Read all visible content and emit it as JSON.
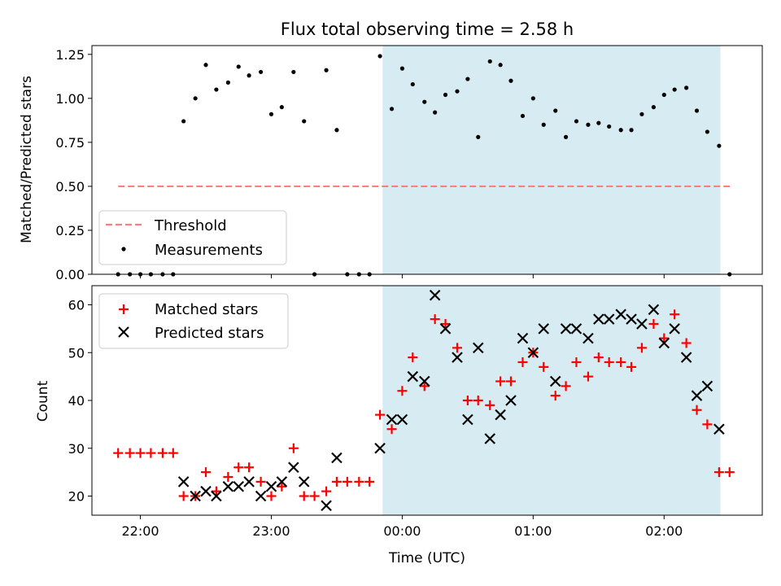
{
  "title": "Flux total observing time = 2.58 h",
  "chart_data": [
    {
      "type": "scatter",
      "panel": "top",
      "ylabel": "Matched/Predicted stars",
      "xlabel": "",
      "xlim_hours": [
        21.63,
        26.75
      ],
      "ylim": [
        0,
        1.3
      ],
      "yticks": [
        0.0,
        0.25,
        0.5,
        0.75,
        1.0,
        1.25
      ],
      "ytick_labels": [
        "0.00",
        "0.25",
        "0.50",
        "0.75",
        "1.00",
        "1.25"
      ],
      "shaded_region_hours": [
        23.85,
        26.43
      ],
      "threshold": {
        "name": "Threshold",
        "y": 0.5,
        "x_hours": [
          21.83,
          26.52
        ],
        "color": "#ff7f7f"
      },
      "series": [
        {
          "name": "Measurements",
          "marker": "dot",
          "color": "#000000",
          "x_hours": [
            21.83,
            21.92,
            22.0,
            22.08,
            22.17,
            22.25,
            22.33,
            22.42,
            22.5,
            22.58,
            22.67,
            22.75,
            22.83,
            22.92,
            23.0,
            23.08,
            23.17,
            23.25,
            23.33,
            23.42,
            23.5,
            23.58,
            23.67,
            23.75,
            23.83,
            23.92,
            24.0,
            24.08,
            24.17,
            24.25,
            24.33,
            24.42,
            24.5,
            24.58,
            24.67,
            24.75,
            24.83,
            24.92,
            25.0,
            25.08,
            25.17,
            25.25,
            25.33,
            25.42,
            25.5,
            25.58,
            25.67,
            25.75,
            25.83,
            25.92,
            26.0,
            26.08,
            26.17,
            26.25,
            26.33,
            26.42,
            26.5
          ],
          "y": [
            0,
            0,
            0,
            0,
            0,
            0,
            0.87,
            1.0,
            1.19,
            1.05,
            1.09,
            1.18,
            1.13,
            1.15,
            0.91,
            0.95,
            1.15,
            0.87,
            0,
            1.16,
            0.82,
            0,
            0,
            0,
            1.24,
            0.94,
            1.17,
            1.08,
            0.98,
            0.92,
            1.02,
            1.04,
            1.11,
            0.78,
            1.21,
            1.19,
            1.1,
            0.9,
            1.0,
            0.85,
            0.93,
            0.78,
            0.87,
            0.85,
            0.86,
            0.84,
            0.82,
            0.82,
            0.91,
            0.95,
            1.02,
            1.05,
            1.06,
            0.93,
            0.81,
            0.73,
            0
          ]
        }
      ],
      "legend": {
        "placement": "lower-left",
        "entries": [
          "Threshold",
          "Measurements"
        ]
      }
    },
    {
      "type": "scatter",
      "panel": "bottom",
      "ylabel": "Count",
      "xlabel": "Time (UTC)",
      "xlim_hours": [
        21.63,
        26.75
      ],
      "ylim": [
        16,
        64
      ],
      "yticks": [
        20,
        30,
        40,
        50,
        60
      ],
      "ytick_labels": [
        "20",
        "30",
        "40",
        "50",
        "60"
      ],
      "xticks_hours": [
        22,
        23,
        24,
        25,
        26
      ],
      "xtick_labels": [
        "22:00",
        "23:00",
        "00:00",
        "01:00",
        "02:00"
      ],
      "shaded_region_hours": [
        23.85,
        26.43
      ],
      "series": [
        {
          "name": "Matched stars",
          "marker": "plus",
          "color": "#ff0000",
          "x_hours": [
            21.83,
            21.92,
            22.0,
            22.08,
            22.17,
            22.25,
            22.33,
            22.42,
            22.5,
            22.58,
            22.67,
            22.75,
            22.83,
            22.92,
            23.0,
            23.08,
            23.17,
            23.25,
            23.33,
            23.42,
            23.5,
            23.58,
            23.67,
            23.75,
            23.83,
            23.92,
            24.0,
            24.08,
            24.17,
            24.25,
            24.33,
            24.42,
            24.5,
            24.58,
            24.67,
            24.75,
            24.83,
            24.92,
            25.0,
            25.08,
            25.17,
            25.25,
            25.33,
            25.42,
            25.5,
            25.58,
            25.67,
            25.75,
            25.83,
            25.92,
            26.0,
            26.08,
            26.17,
            26.25,
            26.33,
            26.42,
            26.5
          ],
          "y": [
            29,
            29,
            29,
            29,
            29,
            29,
            20,
            20,
            25,
            21,
            24,
            26,
            26,
            23,
            20,
            22,
            30,
            20,
            20,
            21,
            23,
            23,
            23,
            23,
            37,
            34,
            42,
            49,
            43,
            57,
            56,
            51,
            40,
            40,
            39,
            44,
            44,
            48,
            50,
            47,
            41,
            43,
            48,
            45,
            49,
            48,
            48,
            47,
            51,
            56,
            53,
            58,
            52,
            38,
            35,
            25,
            25
          ]
        },
        {
          "name": "Predicted stars",
          "marker": "x",
          "color": "#000000",
          "x_hours": [
            22.33,
            22.42,
            22.5,
            22.58,
            22.67,
            22.75,
            22.83,
            22.92,
            23.0,
            23.08,
            23.17,
            23.25,
            23.42,
            23.5,
            23.83,
            23.92,
            24.0,
            24.08,
            24.17,
            24.25,
            24.33,
            24.42,
            24.5,
            24.58,
            24.67,
            24.75,
            24.83,
            24.92,
            25.0,
            25.08,
            25.17,
            25.25,
            25.33,
            25.42,
            25.5,
            25.58,
            25.67,
            25.75,
            25.83,
            25.92,
            26.0,
            26.08,
            26.17,
            26.25,
            26.33,
            26.42
          ],
          "y": [
            23,
            20,
            21,
            20,
            22,
            22,
            23,
            20,
            22,
            23,
            26,
            23,
            18,
            28,
            30,
            36,
            36,
            45,
            44,
            62,
            55,
            49,
            36,
            51,
            32,
            37,
            40,
            53,
            50,
            55,
            44,
            55,
            55,
            53,
            57,
            57,
            58,
            57,
            56,
            59,
            52,
            55,
            49,
            41,
            43,
            34
          ]
        }
      ],
      "legend": {
        "placement": "upper-left",
        "entries": [
          "Matched stars",
          "Predicted stars"
        ]
      }
    }
  ]
}
